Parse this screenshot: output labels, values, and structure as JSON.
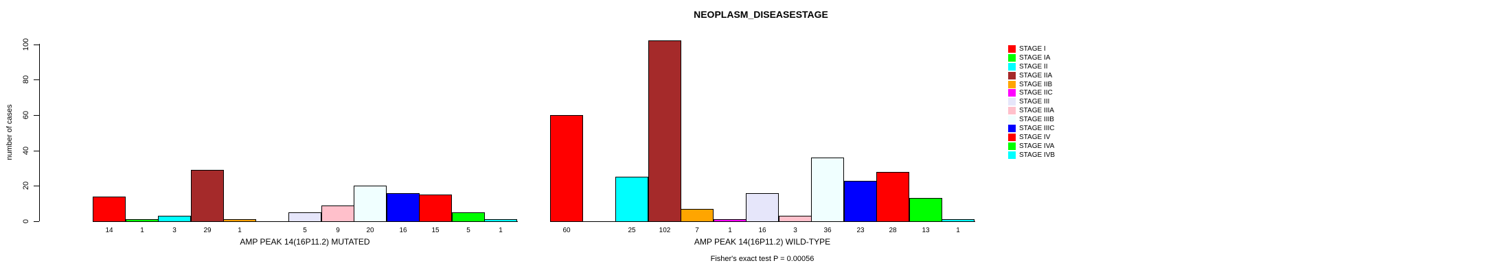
{
  "chart_data": {
    "type": "bar",
    "title": "NEOPLASM_DISEASESTAGE",
    "ylabel": "number of cases",
    "ylim": [
      0,
      100
    ],
    "yticks": [
      0,
      20,
      40,
      60,
      80,
      100
    ],
    "grid": false,
    "legend_position": "right",
    "bar_border_color": "#000000",
    "categories": [
      "STAGE I",
      "STAGE IA",
      "STAGE II",
      "STAGE IIA",
      "STAGE IIB",
      "STAGE IIC",
      "STAGE III",
      "STAGE IIIA",
      "STAGE IIIB",
      "STAGE IIIC",
      "STAGE IV",
      "STAGE IVA",
      "STAGE IVB"
    ],
    "colors": [
      "#FF0000",
      "#00FF00",
      "#00FFFF",
      "#A52A2A",
      "#FFA500",
      "#FF00FF",
      "#E6E6FA",
      "#FFC0CB",
      "#F0FFFF",
      "#0000FF",
      "#FF0000",
      "#00FF00",
      "#00FFFF"
    ],
    "series": [
      {
        "name": "AMP PEAK 14(16P11.2) MUTATED",
        "values": [
          14,
          1,
          3,
          29,
          1,
          0,
          5,
          9,
          20,
          16,
          15,
          5,
          1
        ]
      },
      {
        "name": "AMP PEAK 14(16P11.2) WILD-TYPE",
        "values": [
          60,
          0,
          25,
          102,
          7,
          1,
          16,
          3,
          36,
          23,
          28,
          13,
          1
        ]
      }
    ],
    "footnote": "Fisher's exact test P = 0.00056"
  }
}
